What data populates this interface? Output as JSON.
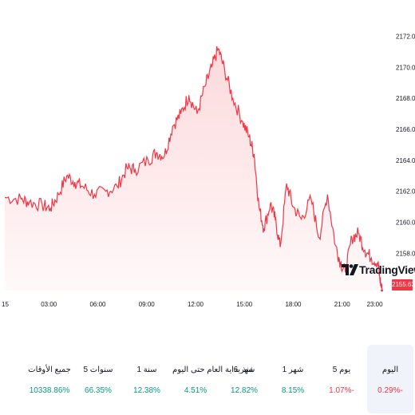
{
  "chart_data": {
    "type": "area",
    "y_ticks": [
      "2158.00",
      "2160.00",
      "2162.00",
      "2164.00",
      "2166.00",
      "2168.00",
      "2170.00",
      "2172.00"
    ],
    "x_ticks": [
      "15",
      "03:00",
      "06:00",
      "09:00",
      "12:00",
      "15:00",
      "18:00",
      "21:00",
      "23:00"
    ],
    "ylim": [
      2155.6,
      2172.8
    ],
    "last_price": "2155.63",
    "line_color": "#f23645",
    "fill_color": "#fcd5d8",
    "grid": false,
    "series": [
      {
        "values": [
          [
            0.0,
            2161.6
          ],
          [
            1.0,
            2161.5
          ],
          [
            1.5,
            2161.3
          ],
          [
            2.3,
            2161.1
          ],
          [
            2.8,
            2160.9
          ],
          [
            3.3,
            2161.8
          ],
          [
            3.8,
            2163.0
          ],
          [
            4.3,
            2162.6
          ],
          [
            4.8,
            2162.3
          ],
          [
            5.5,
            2161.8
          ],
          [
            6.2,
            2162.0
          ],
          [
            6.9,
            2162.3
          ],
          [
            7.5,
            2163.5
          ],
          [
            8.0,
            2163.4
          ],
          [
            8.8,
            2164.0
          ],
          [
            9.3,
            2164.5
          ],
          [
            9.8,
            2164.3
          ],
          [
            10.3,
            2166.2
          ],
          [
            10.8,
            2167.0
          ],
          [
            11.3,
            2168.2
          ],
          [
            11.8,
            2167.0
          ],
          [
            12.3,
            2168.8
          ],
          [
            12.7,
            2170.0
          ],
          [
            13.1,
            2171.2
          ],
          [
            13.5,
            2169.8
          ],
          [
            14.0,
            2168.0
          ],
          [
            14.6,
            2166.5
          ],
          [
            15.0,
            2165.5
          ],
          [
            15.3,
            2164.4
          ],
          [
            15.6,
            2161.0
          ],
          [
            15.9,
            2159.6
          ],
          [
            16.3,
            2161.2
          ],
          [
            16.6,
            2160.2
          ],
          [
            16.9,
            2158.4
          ],
          [
            17.3,
            2162.5
          ],
          [
            17.7,
            2161.0
          ],
          [
            18.2,
            2160.2
          ],
          [
            18.8,
            2161.5
          ],
          [
            19.3,
            2159.0
          ],
          [
            19.8,
            2161.8
          ],
          [
            20.3,
            2158.5
          ],
          [
            20.6,
            2157.4
          ],
          [
            20.9,
            2156.8
          ],
          [
            21.3,
            2159.0
          ],
          [
            21.7,
            2159.3
          ],
          [
            22.1,
            2158.2
          ],
          [
            22.5,
            2157.7
          ],
          [
            22.9,
            2157.4
          ],
          [
            23.0,
            2156.5
          ],
          [
            23.15,
            2155.6
          ]
        ]
      }
    ]
  },
  "branding": {
    "logo_text": "TradingView"
  },
  "performance": [
    {
      "label": "اليوم",
      "value": "0.29%-",
      "trend": "neg",
      "selected": true
    },
    {
      "label": "5 يوم",
      "value": "1.07%-",
      "trend": "neg",
      "selected": false
    },
    {
      "label": "1 شهر",
      "value": "8.15%",
      "trend": "pos",
      "selected": false
    },
    {
      "label": "6 شهر",
      "value": "12.82%",
      "trend": "pos",
      "selected": false
    },
    {
      "label": "منذ بداية العام حتى اليوم",
      "value": "4.51%",
      "trend": "pos",
      "selected": false
    },
    {
      "label": "1 سنة",
      "value": "12.38%",
      "trend": "pos",
      "selected": false
    },
    {
      "label": "5 سنوات",
      "value": "66.35%",
      "trend": "pos",
      "selected": false
    },
    {
      "label": "جميع الأوقات",
      "value": "10338.86%",
      "trend": "pos",
      "selected": false
    }
  ]
}
